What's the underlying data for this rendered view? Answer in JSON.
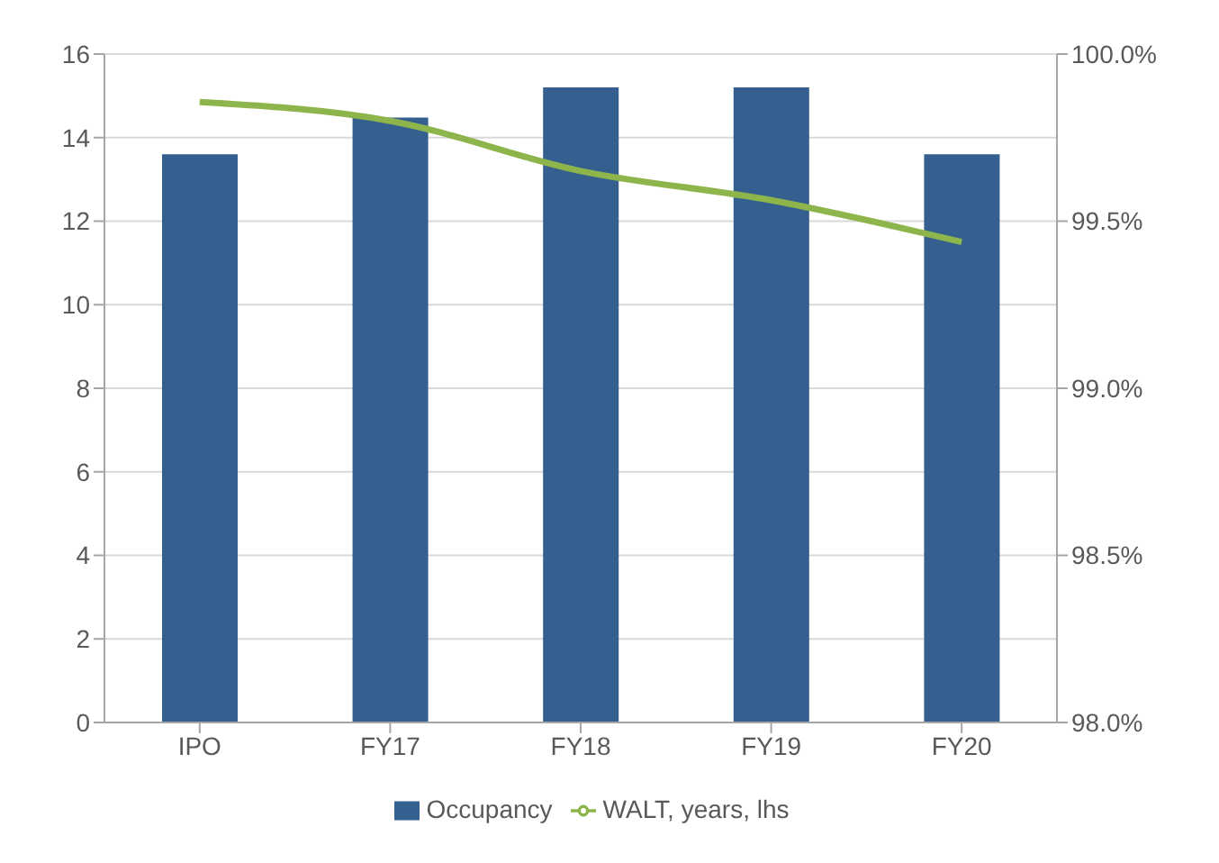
{
  "chart_data": {
    "type": "bar",
    "categories": [
      "IPO",
      "FY17",
      "FY18",
      "FY19",
      "FY20"
    ],
    "series": [
      {
        "name": "Occupancy",
        "axis": "y2",
        "color": "#355f8f",
        "values": [
          99.7,
          99.81,
          99.9,
          99.9,
          99.7
        ]
      },
      {
        "name": "WALT, years, lhs",
        "type": "line",
        "color": "#8db54b",
        "values": [
          14.85,
          14.4,
          13.2,
          12.5,
          11.5
        ]
      }
    ],
    "ylim": [
      0,
      16
    ],
    "yticks": [
      0,
      2,
      4,
      6,
      8,
      10,
      12,
      14,
      16
    ],
    "y2lim": [
      98,
      100
    ],
    "y2ticks": [
      {
        "value": 98,
        "label": "98.0%"
      },
      {
        "value": 98.5,
        "label": "98.5%"
      },
      {
        "value": 99,
        "label": "99.0%"
      },
      {
        "value": 99.5,
        "label": "99.5%"
      },
      {
        "value": 100,
        "label": "100.0%"
      }
    ],
    "grid": "y",
    "legend": "bottom",
    "marker": "none"
  }
}
